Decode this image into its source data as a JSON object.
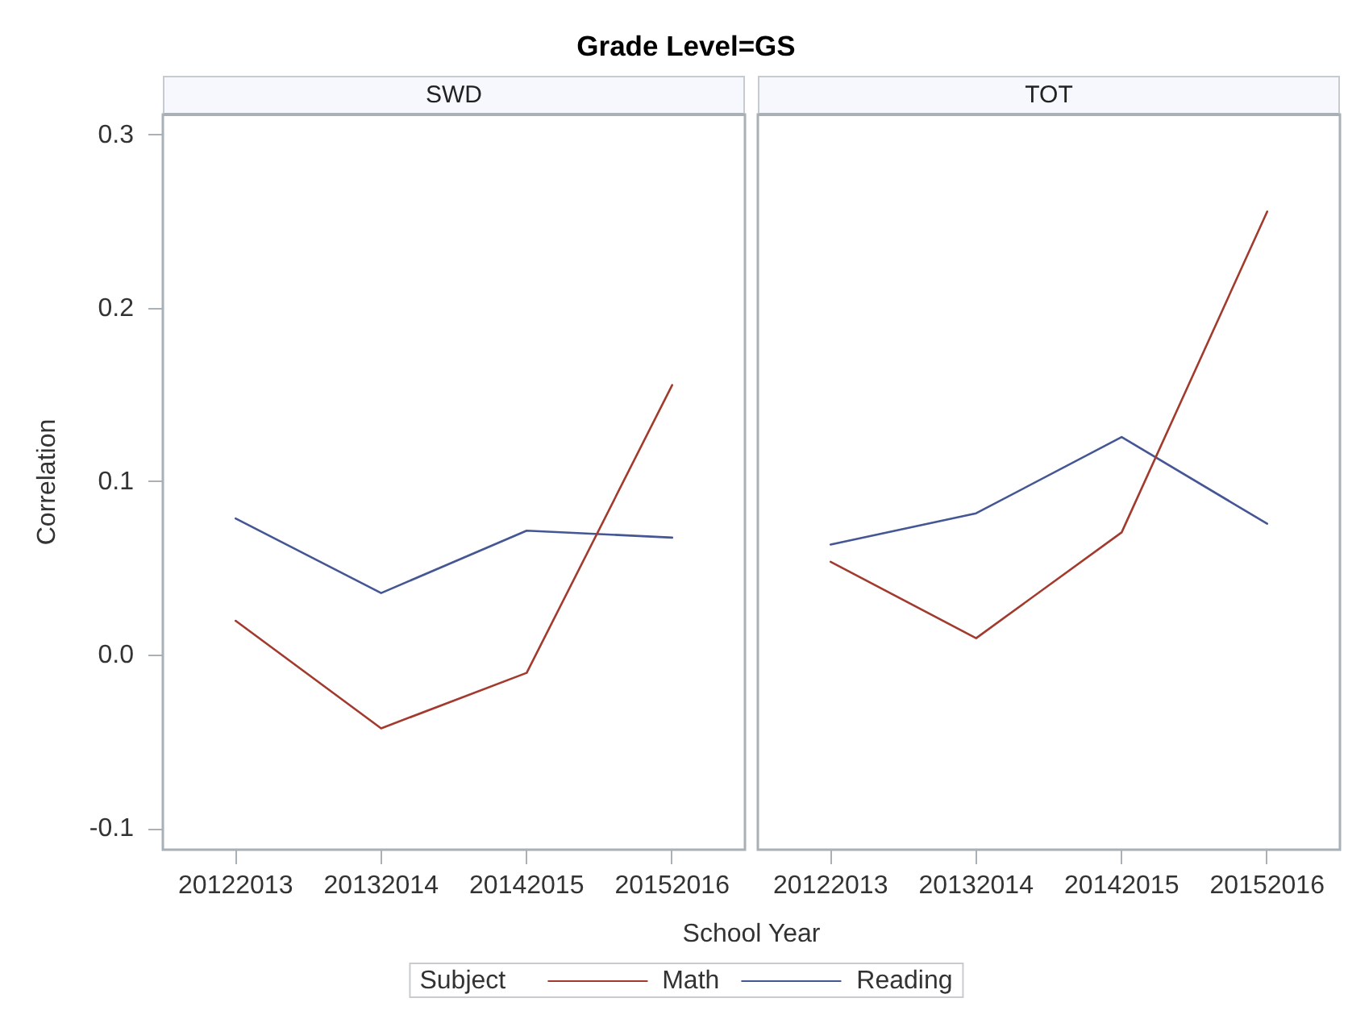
{
  "chart_data": [
    {
      "type": "line",
      "title": "Grade Level=GS",
      "subtitle": "SWD",
      "xlabel": "School Year",
      "ylabel": "Correlation",
      "legend_title": "Subject",
      "legend": "bottom",
      "categories": [
        "20122013",
        "20132014",
        "20142015",
        "20152016"
      ],
      "series": [
        {
          "name": "Math",
          "color": "#a23a2e",
          "values": [
            0.02,
            -0.042,
            -0.01,
            0.156
          ]
        },
        {
          "name": "Reading",
          "color": "#445694",
          "values": [
            0.079,
            0.036,
            0.072,
            0.068
          ]
        }
      ],
      "ylim": [
        -0.112,
        0.312
      ],
      "yticks": [
        -0.1,
        {
          "value": 0,
          "label": "0.0"
        },
        0.1,
        0.2,
        0.3
      ]
    },
    {
      "type": "line",
      "subtitle": "TOT",
      "tick_labels": "x",
      "categories": [
        "20122013",
        "20132014",
        "20142015",
        "20152016"
      ],
      "series": [
        {
          "color": "#a23a2e",
          "values": [
            0.054,
            0.01,
            0.071,
            0.256
          ]
        },
        {
          "color": "#445694",
          "values": [
            0.064,
            0.082,
            0.126,
            0.076
          ]
        }
      ],
      "ylim": [
        -0.112,
        0.312
      ],
      "yticks": [
        -0.1,
        0,
        0.1,
        0.2,
        0.3
      ]
    }
  ]
}
